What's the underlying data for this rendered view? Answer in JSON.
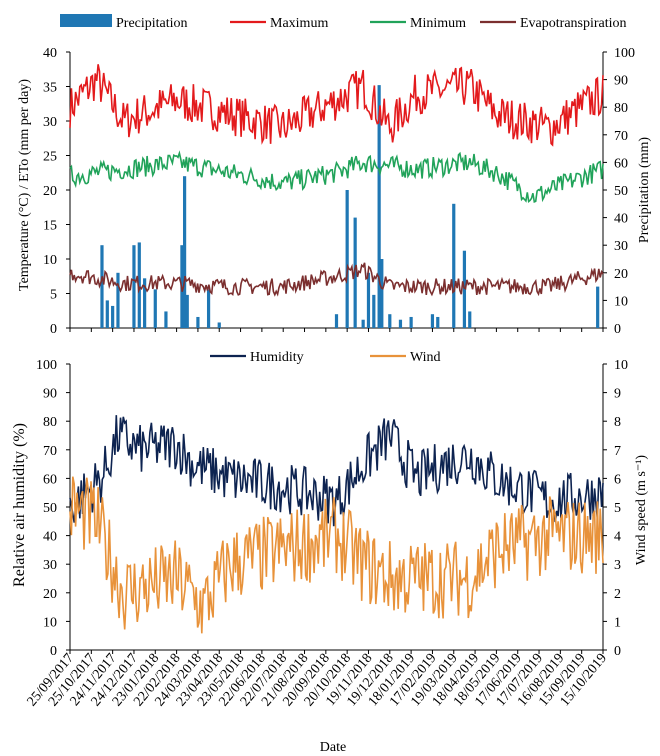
{
  "chart_data": [
    {
      "type": "line",
      "legend_placement": "top",
      "xlabel": "",
      "ylabel": "Temperature (°C) / ETo (mm  per day)",
      "y2label": "Precipitation (mm)",
      "ylim": [
        0,
        40
      ],
      "y2lim": [
        0,
        100
      ],
      "yticks": [
        "0",
        "5",
        "10",
        "15",
        "20",
        "25",
        "30",
        "35",
        "40"
      ],
      "y2ticks": [
        "0",
        "10",
        "20",
        "30",
        "40",
        "50",
        "60",
        "70",
        "80",
        "90",
        "100"
      ],
      "series": [
        {
          "name": "Precipitation",
          "axis": "right",
          "kind": "bar",
          "color": "#1f77b4",
          "points": [
            [
              0.06,
              30
            ],
            [
              0.07,
              10
            ],
            [
              0.08,
              8
            ],
            [
              0.09,
              20
            ],
            [
              0.12,
              30
            ],
            [
              0.13,
              31
            ],
            [
              0.14,
              18
            ],
            [
              0.16,
              14
            ],
            [
              0.18,
              6
            ],
            [
              0.21,
              30
            ],
            [
              0.215,
              55
            ],
            [
              0.22,
              12
            ],
            [
              0.24,
              4
            ],
            [
              0.26,
              14
            ],
            [
              0.28,
              2
            ],
            [
              0.5,
              5
            ],
            [
              0.52,
              50
            ],
            [
              0.535,
              40
            ],
            [
              0.55,
              3
            ],
            [
              0.56,
              20
            ],
            [
              0.57,
              12
            ],
            [
              0.58,
              88
            ],
            [
              0.585,
              25
            ],
            [
              0.6,
              5
            ],
            [
              0.62,
              3
            ],
            [
              0.64,
              4
            ],
            [
              0.68,
              5
            ],
            [
              0.69,
              4
            ],
            [
              0.72,
              45
            ],
            [
              0.74,
              28
            ],
            [
              0.75,
              6
            ],
            [
              0.99,
              15
            ]
          ]
        },
        {
          "name": "Maximum",
          "axis": "left",
          "color": "#e31a1c",
          "base": [
            [
              0,
              32
            ],
            [
              0.05,
              36
            ],
            [
              0.1,
              30
            ],
            [
              0.2,
              33
            ],
            [
              0.3,
              31
            ],
            [
              0.4,
              29
            ],
            [
              0.5,
              33
            ],
            [
              0.55,
              35
            ],
            [
              0.6,
              29
            ],
            [
              0.65,
              34
            ],
            [
              0.75,
              35
            ],
            [
              0.8,
              31
            ],
            [
              0.9,
              29
            ],
            [
              1,
              34
            ]
          ],
          "amp": 3
        },
        {
          "name": "Minimum",
          "axis": "left",
          "color": "#21a35a",
          "base": [
            [
              0,
              22
            ],
            [
              0.1,
              23
            ],
            [
              0.2,
              24
            ],
            [
              0.3,
              22.5
            ],
            [
              0.4,
              21
            ],
            [
              0.5,
              22.5
            ],
            [
              0.55,
              24
            ],
            [
              0.65,
              23
            ],
            [
              0.75,
              24
            ],
            [
              0.8,
              22.5
            ],
            [
              0.87,
              19
            ],
            [
              0.93,
              21
            ],
            [
              1,
              23
            ]
          ],
          "amp": 1.5
        },
        {
          "name": "Evapotranspiration",
          "axis": "left",
          "color": "#7b2f2f",
          "base": [
            [
              0,
              8
            ],
            [
              0.1,
              6.5
            ],
            [
              0.2,
              6.5
            ],
            [
              0.3,
              6
            ],
            [
              0.4,
              6
            ],
            [
              0.5,
              7.5
            ],
            [
              0.55,
              8.5
            ],
            [
              0.6,
              6
            ],
            [
              0.7,
              6
            ],
            [
              0.8,
              6
            ],
            [
              0.9,
              6
            ],
            [
              1,
              8
            ]
          ],
          "amp": 1.2
        }
      ]
    },
    {
      "type": "line",
      "legend_placement": "top",
      "xlabel": "Date",
      "ylabel": "Relative air humidity (%)",
      "y2label": "Wind speed (m s⁻¹)",
      "ylim": [
        0,
        100
      ],
      "y2lim": [
        0,
        10
      ],
      "yticks": [
        "0",
        "10",
        "20",
        "30",
        "40",
        "50",
        "60",
        "70",
        "80",
        "90",
        "100"
      ],
      "y2ticks": [
        "0",
        "1",
        "2",
        "3",
        "4",
        "5",
        "6",
        "7",
        "8",
        "9",
        "10"
      ],
      "series": [
        {
          "name": "Humidity",
          "axis": "left",
          "color": "#0d2350",
          "base": [
            [
              0,
              50
            ],
            [
              0.06,
              60
            ],
            [
              0.09,
              75
            ],
            [
              0.13,
              70
            ],
            [
              0.2,
              72
            ],
            [
              0.23,
              65
            ],
            [
              0.3,
              60
            ],
            [
              0.4,
              57
            ],
            [
              0.5,
              52
            ],
            [
              0.55,
              65
            ],
            [
              0.6,
              75
            ],
            [
              0.65,
              60
            ],
            [
              0.7,
              65
            ],
            [
              0.75,
              68
            ],
            [
              0.8,
              60
            ],
            [
              0.9,
              52
            ],
            [
              1,
              55
            ]
          ],
          "amp": 9
        },
        {
          "name": "Wind",
          "axis": "right",
          "color": "#e8923a",
          "base": [
            [
              0,
              5
            ],
            [
              0.05,
              4.5
            ],
            [
              0.1,
              2
            ],
            [
              0.2,
              2.5
            ],
            [
              0.25,
              1.5
            ],
            [
              0.3,
              3
            ],
            [
              0.4,
              3.5
            ],
            [
              0.5,
              4
            ],
            [
              0.55,
              3
            ],
            [
              0.6,
              2.5
            ],
            [
              0.7,
              2.5
            ],
            [
              0.75,
              2.5
            ],
            [
              0.8,
              3.5
            ],
            [
              0.9,
              4
            ],
            [
              1,
              4
            ]
          ],
          "amp": 1.4
        }
      ]
    }
  ],
  "x_tick_labels": [
    "25/09/2017",
    "25/10/2017",
    "24/11/2017",
    "24/12/2017",
    "23/01/2018",
    "22/02/2018",
    "24/03/2018",
    "23/04/2018",
    "23/05/2018",
    "22/06/2018",
    "22/07/2018",
    "21/08/2018",
    "20/09/2018",
    "20/10/2018",
    "19/11/2018",
    "19/12/2018",
    "18/01/2019",
    "17/02/2019",
    "19/03/2019",
    "18/04/2019",
    "18/05/2019",
    "17/06/2019",
    "17/07/2019",
    "16/08/2019",
    "15/09/2019",
    "15/10/2019"
  ]
}
